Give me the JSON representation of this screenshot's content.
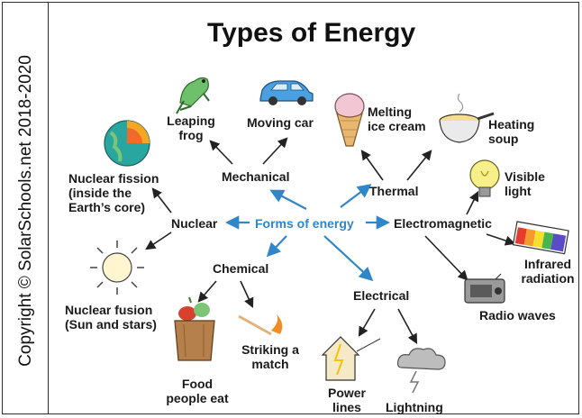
{
  "title": "Types of Energy",
  "copyright": "Copyright © SolarSchools.net 2018-2020",
  "center": "Forms of energy",
  "categories": {
    "mechanical": "Mechanical",
    "thermal": "Thermal",
    "nuclear": "Nuclear",
    "electromagnetic": "Electromagnetic",
    "chemical": "Chemical",
    "electrical": "Electrical"
  },
  "examples": {
    "leaping_frog": "Leaping\nfrog",
    "moving_car": "Moving car",
    "melting_ice_cream": "Melting\nice cream",
    "heating_soup": "Heating\nsoup",
    "nuclear_fission": "Nuclear fission\n(inside the\nEarth’s core)",
    "nuclear_fusion": "Nuclear fusion\n(Sun and stars)",
    "visible_light": "Visible\nlight",
    "infrared_radiation": "Infrared\nradiation",
    "radio_waves": "Radio waves",
    "food_people_eat": "Food\npeople eat",
    "striking_a_match": "Striking a\nmatch",
    "power_lines": "Power\nlines",
    "lightning": "Lightning"
  },
  "colors": {
    "accent": "#2f86c9",
    "text": "#1a1a1a"
  }
}
